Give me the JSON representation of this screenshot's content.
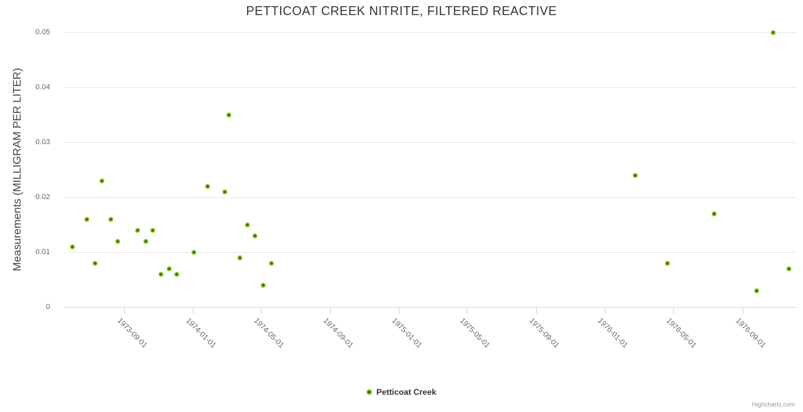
{
  "credit": "Highcharts.com",
  "colors": {
    "background": "#ffffff",
    "title": "#333333",
    "axis_title": "#444444",
    "axis_label": "#666666",
    "grid_line": "#e6e6e6",
    "axis_line": "#ccd6eb",
    "legend_text": "#333333",
    "credit_text": "#999999"
  },
  "chart_data": {
    "type": "scatter",
    "title": "PETTICOAT CREEK NITRITE, FILTERED REACTIVE",
    "xlabel": "",
    "ylabel": "Measurements (MILLIGRAM PER LITER)",
    "x_type": "datetime",
    "xlim": [
      "1973-05-17",
      "1976-12-05"
    ],
    "x_ticks": [
      "1973-09-01",
      "1974-01-01",
      "1974-05-01",
      "1974-09-01",
      "1975-01-01",
      "1975-05-01",
      "1975-09-01",
      "1976-01-01",
      "1976-05-01",
      "1976-09-01"
    ],
    "ylim": [
      0,
      0.05
    ],
    "y_ticks": [
      0,
      0.01,
      0.02,
      0.03,
      0.04,
      0.05
    ],
    "grid": true,
    "legend_position": "bottom-center",
    "series": [
      {
        "name": "Petticoat Creek",
        "color": "#84c414",
        "marker_core_color": "#3e7500",
        "points": [
          [
            "1973-06-01",
            0.011
          ],
          [
            "1973-06-27",
            0.016
          ],
          [
            "1973-07-11",
            0.008
          ],
          [
            "1973-07-24",
            0.023
          ],
          [
            "1973-08-08",
            0.016
          ],
          [
            "1973-08-21",
            0.012
          ],
          [
            "1973-09-25",
            0.014
          ],
          [
            "1973-10-09",
            0.012
          ],
          [
            "1973-10-22",
            0.014
          ],
          [
            "1973-11-05",
            0.006
          ],
          [
            "1973-11-20",
            0.007
          ],
          [
            "1973-12-03",
            0.006
          ],
          [
            "1974-01-02",
            0.01
          ],
          [
            "1974-01-27",
            0.022
          ],
          [
            "1974-02-26",
            0.021
          ],
          [
            "1974-03-05",
            0.035
          ],
          [
            "1974-03-25",
            0.009
          ],
          [
            "1974-04-08",
            0.015
          ],
          [
            "1974-04-21",
            0.013
          ],
          [
            "1974-05-05",
            0.004
          ],
          [
            "1974-05-20",
            0.008
          ],
          [
            "1976-02-24",
            0.024
          ],
          [
            "1976-04-21",
            0.008
          ],
          [
            "1976-07-13",
            0.017
          ],
          [
            "1976-09-26",
            0.003
          ],
          [
            "1976-10-25",
            0.05
          ],
          [
            "1976-11-22",
            0.007
          ]
        ]
      }
    ]
  }
}
